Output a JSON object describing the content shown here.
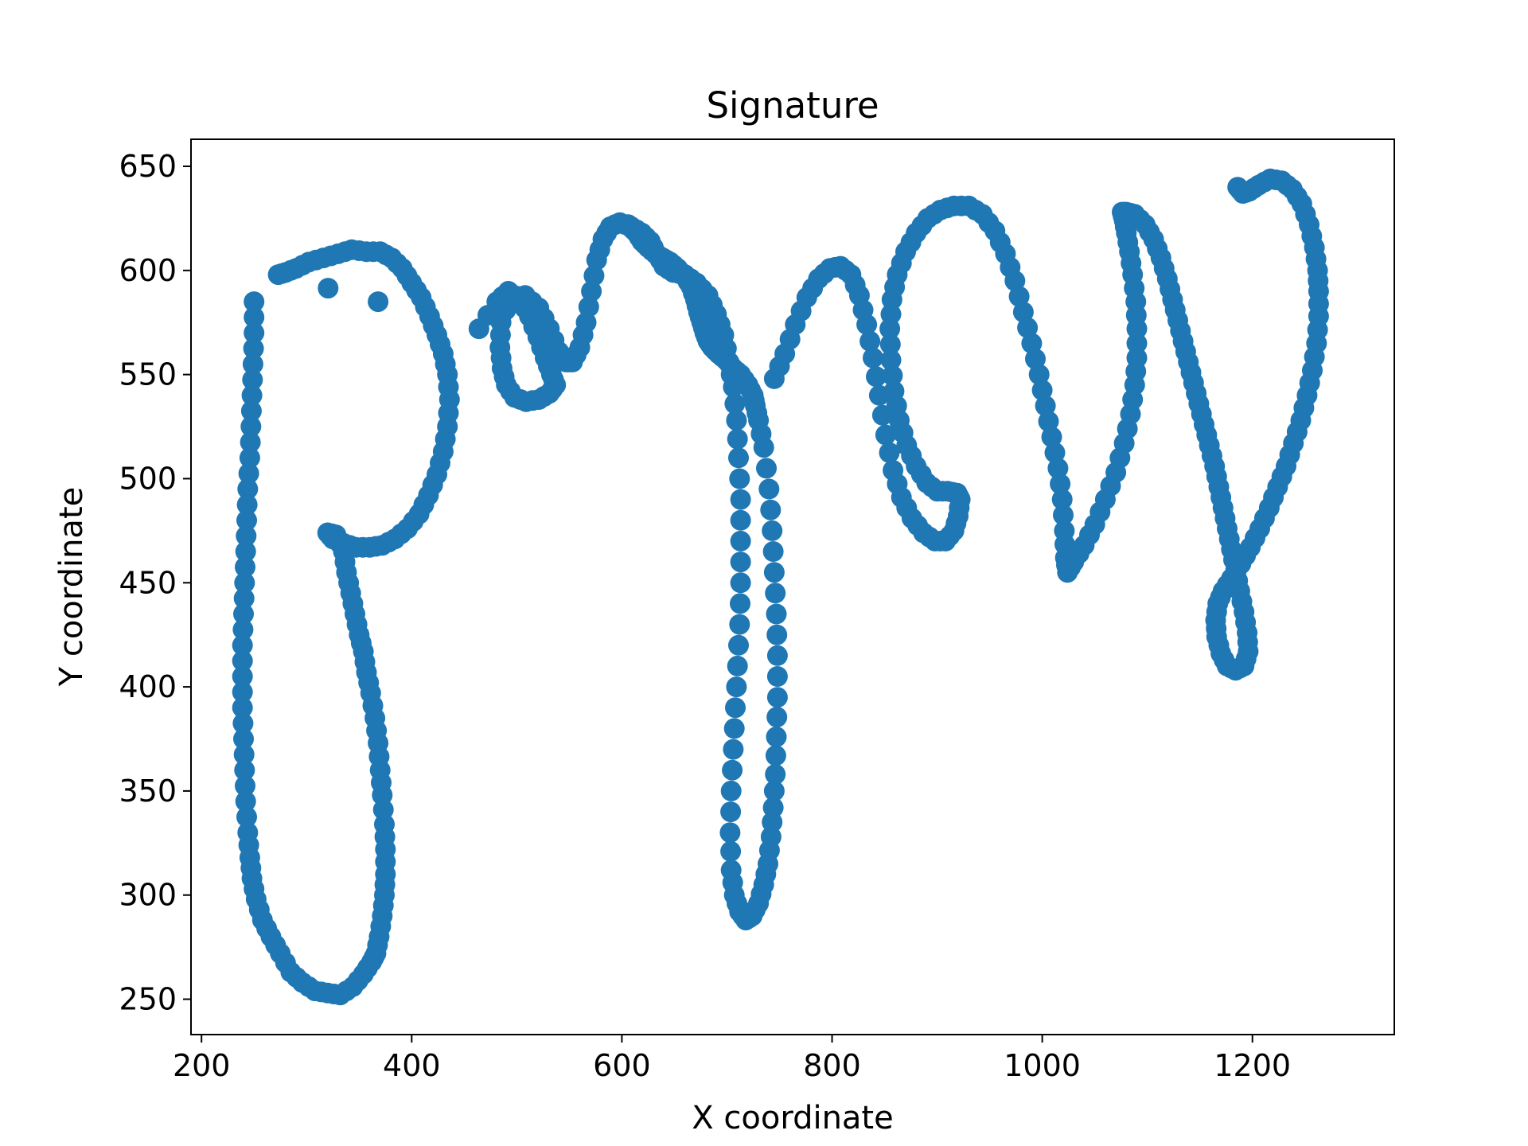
{
  "chart_data": {
    "type": "scatter",
    "title": "Signature",
    "xlabel": "X coordinate",
    "ylabel": "Y coordinate",
    "xlim": [
      190,
      1335
    ],
    "ylim": [
      233,
      663
    ],
    "xticks": [
      200,
      400,
      600,
      800,
      1000,
      1200
    ],
    "yticks": [
      250,
      300,
      350,
      400,
      450,
      500,
      550,
      600,
      650
    ],
    "grid": false,
    "legend": "none",
    "marker_color": "#1f77b4",
    "strokes": [
      [
        [
          250,
          585
        ],
        [
          250,
          570
        ],
        [
          249,
          555
        ],
        [
          248,
          540
        ],
        [
          247,
          525
        ],
        [
          246,
          510
        ],
        [
          244,
          495
        ],
        [
          243,
          480
        ],
        [
          242,
          465
        ],
        [
          241,
          450
        ],
        [
          240,
          435
        ],
        [
          239,
          420
        ],
        [
          239,
          405
        ],
        [
          239,
          390
        ],
        [
          240,
          375
        ],
        [
          241,
          360
        ],
        [
          242,
          345
        ],
        [
          244,
          330
        ],
        [
          246,
          318
        ],
        [
          248,
          308
        ],
        [
          252,
          298
        ],
        [
          258,
          288
        ],
        [
          266,
          280
        ],
        [
          275,
          272
        ],
        [
          285,
          263
        ],
        [
          296,
          258
        ],
        [
          308,
          254
        ],
        [
          320,
          253
        ],
        [
          332,
          252
        ],
        [
          344,
          256
        ],
        [
          354,
          262
        ],
        [
          362,
          268
        ],
        [
          366,
          272
        ],
        [
          369,
          280
        ],
        [
          372,
          290
        ],
        [
          374,
          300
        ],
        [
          375,
          310
        ],
        [
          375,
          322
        ],
        [
          374,
          334
        ],
        [
          372,
          348
        ],
        [
          370,
          360
        ],
        [
          368,
          373
        ],
        [
          365,
          385
        ],
        [
          361,
          397
        ],
        [
          357,
          407
        ],
        [
          354,
          417
        ],
        [
          350,
          425
        ],
        [
          346,
          435
        ],
        [
          342,
          445
        ],
        [
          338,
          455
        ],
        [
          335,
          465
        ],
        [
          328,
          473
        ],
        [
          320,
          474
        ],
        [
          325,
          471
        ],
        [
          335,
          469
        ],
        [
          347,
          467
        ],
        [
          360,
          467
        ],
        [
          372,
          468
        ],
        [
          384,
          471
        ],
        [
          396,
          476
        ],
        [
          407,
          483
        ],
        [
          416,
          492
        ],
        [
          424,
          502
        ],
        [
          430,
          513
        ],
        [
          434,
          525
        ],
        [
          436,
          538
        ],
        [
          434,
          550
        ],
        [
          430,
          560
        ],
        [
          424,
          569
        ],
        [
          417,
          578
        ],
        [
          409,
          587
        ],
        [
          400,
          594
        ],
        [
          391,
          601
        ],
        [
          381,
          606
        ],
        [
          370,
          609
        ],
        [
          357,
          609
        ],
        [
          343,
          610
        ],
        [
          330,
          608
        ],
        [
          316,
          606
        ],
        [
          302,
          604
        ],
        [
          290,
          601
        ],
        [
          280,
          599
        ],
        [
          273,
          598
        ],
        [
          368,
          585
        ]
      ],
      [
        [
          464,
          572
        ],
        [
          481,
          585
        ],
        [
          492,
          590
        ],
        [
          503,
          586
        ],
        [
          512,
          578
        ],
        [
          520,
          568
        ],
        [
          527,
          558
        ],
        [
          533,
          550
        ],
        [
          537,
          545
        ],
        [
          531,
          541
        ],
        [
          521,
          538
        ],
        [
          509,
          537
        ],
        [
          498,
          539
        ],
        [
          490,
          545
        ],
        [
          486,
          553
        ],
        [
          484,
          563
        ],
        [
          485,
          575
        ],
        [
          494,
          587
        ],
        [
          508,
          588
        ],
        [
          521,
          582
        ],
        [
          531,
          572
        ],
        [
          540,
          561
        ],
        [
          547,
          556
        ],
        [
          553,
          556
        ],
        [
          560,
          563
        ],
        [
          566,
          575
        ],
        [
          571,
          590
        ],
        [
          576,
          605
        ],
        [
          582,
          615
        ],
        [
          589,
          621
        ],
        [
          598,
          623
        ],
        [
          609,
          621
        ],
        [
          619,
          618
        ],
        [
          627,
          614
        ],
        [
          633,
          608
        ],
        [
          640,
          602
        ],
        [
          649,
          599
        ],
        [
          660,
          598
        ],
        [
          671,
          594
        ],
        [
          682,
          588
        ],
        [
          690,
          579
        ],
        [
          697,
          569
        ],
        [
          702,
          556
        ],
        [
          706,
          544
        ],
        [
          709,
          528
        ],
        [
          711,
          510
        ],
        [
          713,
          490
        ],
        [
          713,
          470
        ],
        [
          713,
          450
        ],
        [
          712,
          430
        ],
        [
          710,
          410
        ],
        [
          708,
          390
        ],
        [
          706,
          370
        ],
        [
          704,
          350
        ],
        [
          703,
          330
        ],
        [
          704,
          312
        ],
        [
          707,
          300
        ],
        [
          712,
          292
        ],
        [
          718,
          288
        ],
        [
          724,
          290
        ],
        [
          730,
          296
        ],
        [
          735,
          305
        ],
        [
          739,
          315
        ],
        [
          742,
          328
        ],
        [
          744,
          342
        ],
        [
          746,
          358
        ],
        [
          747,
          376
        ],
        [
          748,
          395
        ],
        [
          748,
          415
        ],
        [
          747,
          435
        ],
        [
          745,
          455
        ],
        [
          743,
          475
        ],
        [
          740,
          495
        ],
        [
          735,
          515
        ],
        [
          730,
          528
        ],
        [
          727,
          535
        ],
        [
          725,
          540
        ],
        [
          720,
          545
        ],
        [
          713,
          550
        ],
        [
          706,
          553
        ],
        [
          699,
          557
        ],
        [
          692,
          560
        ],
        [
          686,
          563
        ],
        [
          682,
          566
        ],
        [
          679,
          570
        ],
        [
          676,
          575
        ],
        [
          673,
          580
        ],
        [
          670,
          586
        ],
        [
          666,
          592
        ],
        [
          660,
          597
        ],
        [
          653,
          601
        ],
        [
          646,
          604
        ],
        [
          639,
          606
        ],
        [
          632,
          608
        ],
        [
          625,
          611
        ],
        [
          619,
          614
        ],
        [
          614,
          618
        ],
        [
          610,
          620
        ],
        [
          606,
          622
        ]
      ],
      [
        [
          745,
          548
        ],
        [
          755,
          560
        ],
        [
          765,
          574
        ],
        [
          776,
          587
        ],
        [
          787,
          596
        ],
        [
          798,
          601
        ],
        [
          808,
          602
        ],
        [
          818,
          598
        ],
        [
          826,
          588
        ],
        [
          833,
          574
        ],
        [
          839,
          558
        ],
        [
          845,
          540
        ],
        [
          851,
          521
        ],
        [
          858,
          504
        ],
        [
          866,
          491
        ],
        [
          876,
          481
        ],
        [
          887,
          474
        ],
        [
          898,
          470
        ],
        [
          908,
          470
        ],
        [
          916,
          475
        ],
        [
          920,
          482
        ],
        [
          922,
          490
        ],
        [
          919,
          493
        ],
        [
          910,
          494
        ],
        [
          900,
          494
        ],
        [
          890,
          498
        ],
        [
          880,
          506
        ],
        [
          871,
          516
        ],
        [
          864,
          528
        ],
        [
          859,
          542
        ],
        [
          856,
          557
        ],
        [
          855,
          572
        ],
        [
          857,
          586
        ],
        [
          862,
          598
        ],
        [
          870,
          609
        ],
        [
          880,
          618
        ],
        [
          891,
          625
        ],
        [
          903,
          629
        ],
        [
          916,
          631
        ],
        [
          930,
          631
        ],
        [
          943,
          627
        ],
        [
          955,
          619
        ],
        [
          965,
          608
        ],
        [
          974,
          595
        ],
        [
          982,
          580
        ],
        [
          990,
          565
        ],
        [
          997,
          550
        ],
        [
          1003,
          535
        ],
        [
          1009,
          520
        ],
        [
          1015,
          505
        ],
        [
          1019,
          490
        ],
        [
          1021,
          475
        ],
        [
          1022,
          462
        ],
        [
          1024,
          455
        ],
        [
          1030,
          460
        ],
        [
          1040,
          468
        ],
        [
          1050,
          478
        ],
        [
          1060,
          490
        ],
        [
          1070,
          503
        ],
        [
          1078,
          517
        ],
        [
          1084,
          531
        ],
        [
          1088,
          545
        ],
        [
          1090,
          558
        ],
        [
          1090,
          572
        ],
        [
          1089,
          585
        ],
        [
          1086,
          598
        ],
        [
          1083,
          609
        ],
        [
          1080,
          618
        ],
        [
          1078,
          624
        ],
        [
          1076,
          628
        ],
        [
          1080,
          628
        ],
        [
          1088,
          627
        ],
        [
          1098,
          622
        ],
        [
          1106,
          615
        ],
        [
          1113,
          606
        ],
        [
          1119,
          596
        ],
        [
          1124,
          586
        ],
        [
          1129,
          576
        ],
        [
          1134,
          566
        ],
        [
          1139,
          556
        ],
        [
          1144,
          546
        ],
        [
          1149,
          536
        ],
        [
          1154,
          526
        ],
        [
          1159,
          516
        ],
        [
          1164,
          506
        ],
        [
          1168,
          496
        ],
        [
          1172,
          486
        ],
        [
          1176,
          476
        ],
        [
          1180,
          466
        ],
        [
          1184,
          456
        ],
        [
          1188,
          446
        ],
        [
          1192,
          436
        ],
        [
          1195,
          426
        ],
        [
          1196,
          417
        ],
        [
          1192,
          410
        ],
        [
          1184,
          408
        ],
        [
          1176,
          410
        ],
        [
          1170,
          416
        ],
        [
          1166,
          424
        ],
        [
          1165,
          432
        ],
        [
          1167,
          440
        ],
        [
          1172,
          446
        ],
        [
          1180,
          452
        ],
        [
          1189,
          459
        ],
        [
          1198,
          467
        ],
        [
          1207,
          476
        ],
        [
          1216,
          486
        ],
        [
          1224,
          496
        ],
        [
          1232,
          506
        ],
        [
          1239,
          517
        ],
        [
          1246,
          528
        ],
        [
          1252,
          540
        ],
        [
          1257,
          552
        ],
        [
          1261,
          565
        ],
        [
          1263,
          578
        ],
        [
          1263,
          590
        ],
        [
          1262,
          600
        ],
        [
          1259,
          611
        ],
        [
          1254,
          622
        ],
        [
          1247,
          632
        ],
        [
          1238,
          639
        ],
        [
          1228,
          643
        ],
        [
          1217,
          644
        ],
        [
          1206,
          641
        ],
        [
          1197,
          638
        ],
        [
          1191,
          637
        ],
        [
          1186,
          640
        ]
      ]
    ]
  }
}
